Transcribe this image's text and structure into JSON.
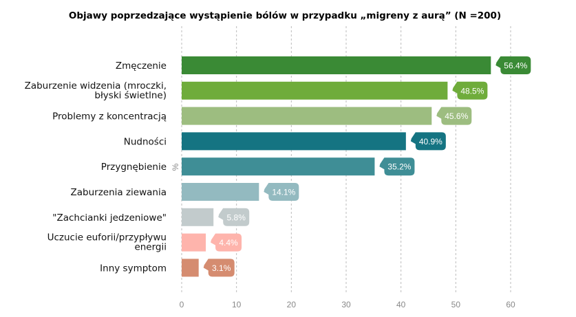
{
  "chart_data": {
    "type": "bar",
    "orientation": "horizontal",
    "title": "Objawy poprzedzające wystąpienie bólów w przypadku „migreny z aurą” (N =200)",
    "xlabel": "",
    "ylabel": "%",
    "xlim": [
      0,
      63
    ],
    "xticks": [
      0,
      10,
      20,
      30,
      40,
      50,
      60
    ],
    "grid": "vertical dashed",
    "categories": [
      [
        "Zmęczenie"
      ],
      [
        "Zaburzenie widzenia (mroczki,",
        "błyski świetlne)"
      ],
      [
        "Problemy z koncentracją"
      ],
      [
        "Nudności"
      ],
      [
        "Przygnębienie"
      ],
      [
        "Zaburzenia ziewania"
      ],
      [
        "\"Zachcianki jedzeniowe\""
      ],
      [
        "Uczucie euforii/przypływu",
        "energii"
      ],
      [
        "Inny symptom"
      ]
    ],
    "values": [
      56.4,
      48.5,
      45.6,
      40.9,
      35.2,
      14.1,
      5.8,
      4.4,
      3.1
    ],
    "data_labels": [
      "56.4%",
      "48.5%",
      "45.6%",
      "40.9%",
      "35.2%",
      "14.1%",
      "5.8%",
      "4.4%",
      "3.1%"
    ],
    "colors": [
      "#3a8a35",
      "#6fac3b",
      "#9dbd80",
      "#157482",
      "#3f8e96",
      "#93bac0",
      "#c2cbcc",
      "#feb4ac",
      "#d58c70"
    ]
  }
}
